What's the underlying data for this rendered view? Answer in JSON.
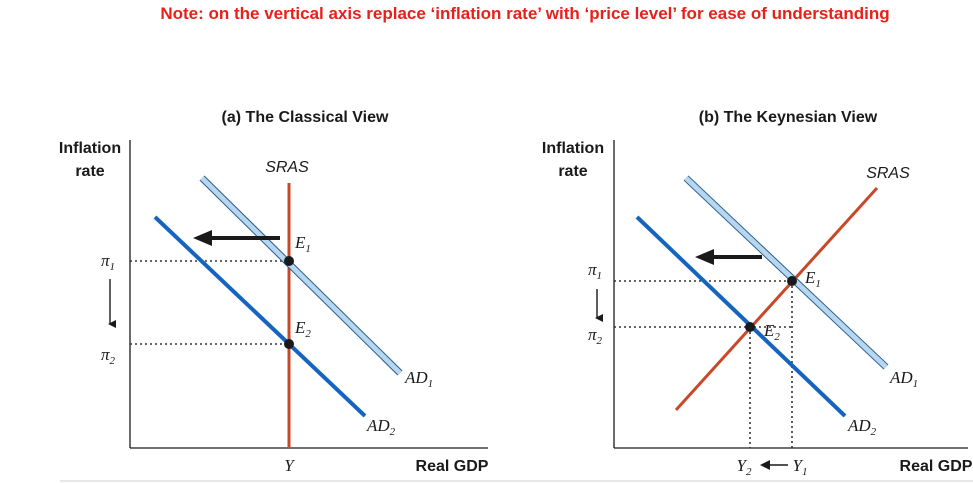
{
  "note": "Note: on the vertical axis replace ‘inflation rate’ with ‘price level’ for ease of understanding",
  "panel_a": {
    "title": "(a) The Classical View",
    "y_axis_label_line1": "Inflation",
    "y_axis_label_line2": "rate",
    "x_axis_label": "Real GDP",
    "sras_label": "SRAS",
    "ad1_label": "AD",
    "ad2_label": "AD",
    "e1_label": "E",
    "e2_label": "E",
    "pi1_label": "π",
    "pi2_label": "π",
    "y_label": "Y",
    "sub1": "1",
    "sub2": "2"
  },
  "panel_b": {
    "title": "(b) The Keynesian View",
    "y_axis_label_line1": "Inflation",
    "y_axis_label_line2": "rate",
    "x_axis_label": "Real GDP",
    "sras_label": "SRAS",
    "ad1_label": "AD",
    "ad2_label": "AD",
    "e1_label": "E",
    "e2_label": "E",
    "pi1_label": "π",
    "pi2_label": "π",
    "y1_label": "Y",
    "y2_label": "Y",
    "sub1": "1",
    "sub2": "2"
  },
  "colors": {
    "note": "#e8201a",
    "sras": "#c8492a",
    "ad1": "#a9cdeb",
    "ad2": "#1565c0",
    "axis": "#1a1a1a"
  }
}
